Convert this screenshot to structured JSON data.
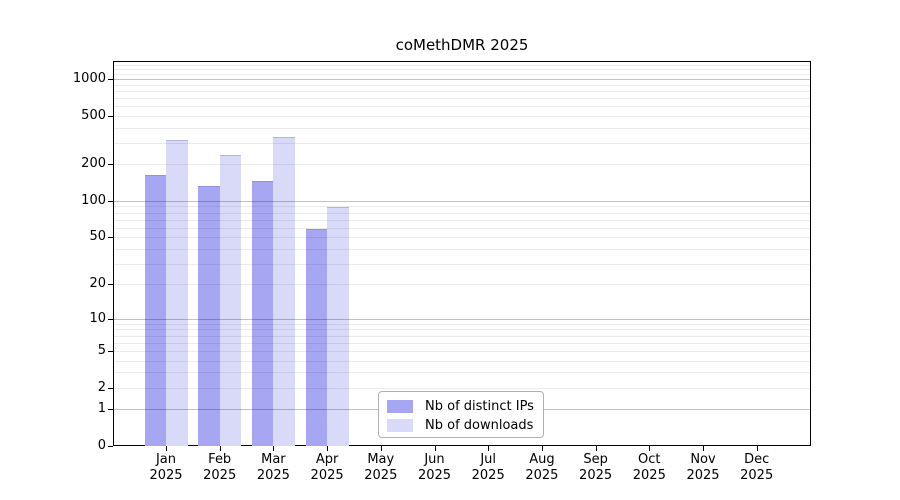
{
  "title": "coMethDMR 2025",
  "chart_data": {
    "type": "bar",
    "title": "coMethDMR 2025",
    "y_scale": "log10(1+x)",
    "categories": [
      "Jan",
      "Feb",
      "Mar",
      "Apr",
      "May",
      "Jun",
      "Jul",
      "Aug",
      "Sep",
      "Oct",
      "Nov",
      "Dec"
    ],
    "year": "2025",
    "series": [
      {
        "name": "Nb of distinct IPs",
        "color": "#a6a6f2",
        "values": [
          163,
          133,
          147,
          58,
          0,
          0,
          0,
          0,
          0,
          0,
          0,
          0
        ]
      },
      {
        "name": "Nb of downloads",
        "color": "#d9d9f8",
        "values": [
          315,
          240,
          333,
          89,
          0,
          0,
          0,
          0,
          0,
          0,
          0,
          0
        ]
      }
    ],
    "y_ticks": [
      0,
      1,
      2,
      5,
      10,
      20,
      50,
      100,
      200,
      500,
      1000
    ],
    "ylim": [
      0,
      1400
    ],
    "grid": "horizontal; major lines at 1, 10, 100, 1000; minor lines at 2-9 per decade and 1100-1400",
    "legend_position": "bottom-center",
    "xlabel": "",
    "ylabel": ""
  },
  "legend": {
    "items": [
      {
        "label": "Nb of distinct IPs"
      },
      {
        "label": "Nb of downloads"
      }
    ]
  }
}
